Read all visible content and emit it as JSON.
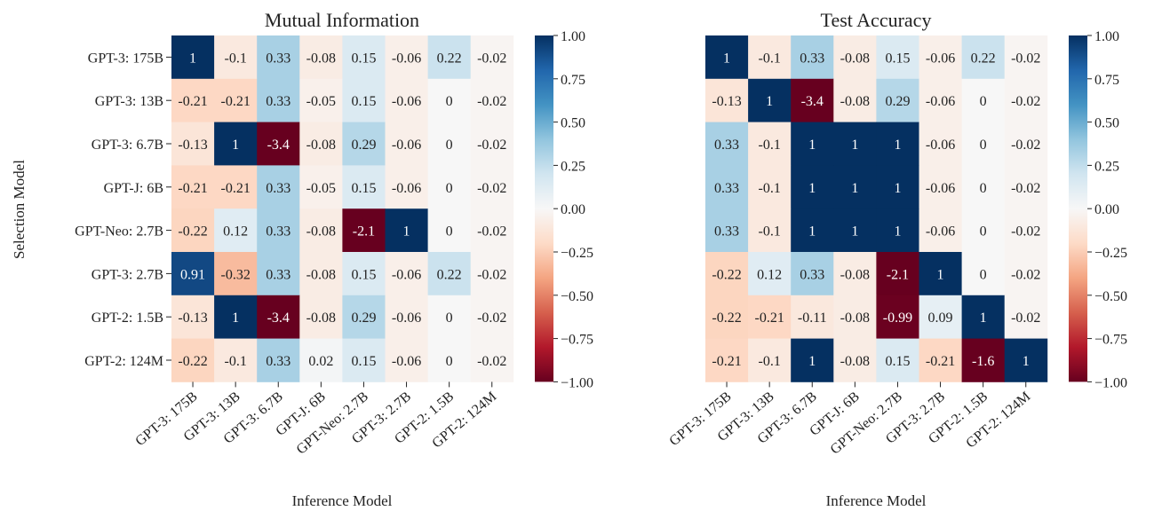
{
  "chart_data": [
    {
      "type": "heatmap",
      "title": "Mutual Information",
      "xlabel": "Inference Model",
      "ylabel": "Selection Model",
      "x_categories": [
        "GPT-3: 175B",
        "GPT-3: 13B",
        "GPT-3: 6.7B",
        "GPT-J: 6B",
        "GPT-Neo: 2.7B",
        "GPT-3: 2.7B",
        "GPT-2: 1.5B",
        "GPT-2: 124M"
      ],
      "y_categories": [
        "GPT-3: 175B",
        "GPT-3: 13B",
        "GPT-3: 6.7B",
        "GPT-J: 6B",
        "GPT-Neo: 2.7B",
        "GPT-3: 2.7B",
        "GPT-2: 1.5B",
        "GPT-2: 124M"
      ],
      "values": [
        [
          1,
          -0.1,
          0.33,
          -0.08,
          0.15,
          -0.06,
          0.22,
          -0.02
        ],
        [
          -0.21,
          -0.21,
          0.33,
          -0.05,
          0.15,
          -0.06,
          0,
          -0.02
        ],
        [
          -0.13,
          1,
          -3.4,
          -0.08,
          0.29,
          -0.06,
          0,
          -0.02
        ],
        [
          -0.21,
          -0.21,
          0.33,
          -0.05,
          0.15,
          -0.06,
          0,
          -0.02
        ],
        [
          -0.22,
          0.12,
          0.33,
          -0.08,
          -2.1,
          1,
          0,
          -0.02
        ],
        [
          0.91,
          -0.32,
          0.33,
          -0.08,
          0.15,
          -0.06,
          0.22,
          -0.02
        ],
        [
          -0.13,
          1,
          -3.4,
          -0.08,
          0.29,
          -0.06,
          0,
          -0.02
        ],
        [
          -0.22,
          -0.1,
          0.33,
          0.02,
          0.15,
          -0.06,
          0,
          -0.02
        ]
      ],
      "labels": [
        [
          "1",
          "-0.1",
          "0.33",
          "-0.08",
          "0.15",
          "-0.06",
          "0.22",
          "-0.02"
        ],
        [
          "-0.21",
          "-0.21",
          "0.33",
          "-0.05",
          "0.15",
          "-0.06",
          "0",
          "-0.02"
        ],
        [
          "-0.13",
          "1",
          "-3.4",
          "-0.08",
          "0.29",
          "-0.06",
          "0",
          "-0.02"
        ],
        [
          "-0.21",
          "-0.21",
          "0.33",
          "-0.05",
          "0.15",
          "-0.06",
          "0",
          "-0.02"
        ],
        [
          "-0.22",
          "0.12",
          "0.33",
          "-0.08",
          "-2.1",
          "1",
          "0",
          "-0.02"
        ],
        [
          "0.91",
          "-0.32",
          "0.33",
          "-0.08",
          "0.15",
          "-0.06",
          "0.22",
          "-0.02"
        ],
        [
          "-0.13",
          "1",
          "-3.4",
          "-0.08",
          "0.29",
          "-0.06",
          "0",
          "-0.02"
        ],
        [
          "-0.22",
          "-0.1",
          "0.33",
          "0.02",
          "0.15",
          "-0.06",
          "0",
          "-0.02"
        ]
      ],
      "colorbar": {
        "range": [
          -1,
          1
        ],
        "ticks": [
          1,
          0.75,
          0.5,
          0.25,
          0,
          -0.25,
          -0.5,
          -0.75,
          -1
        ],
        "tick_labels": [
          "1.00",
          "0.75",
          "0.50",
          "0.25",
          "0.00",
          "−0.25",
          "−0.50",
          "−0.75",
          "−1.00"
        ],
        "colormap": "RdBu"
      },
      "show_y_ticks": true
    },
    {
      "type": "heatmap",
      "title": "Test Accuracy",
      "xlabel": "Inference Model",
      "ylabel": "",
      "x_categories": [
        "GPT-3: 175B",
        "GPT-3: 13B",
        "GPT-3: 6.7B",
        "GPT-J: 6B",
        "GPT-Neo: 2.7B",
        "GPT-3: 2.7B",
        "GPT-2: 1.5B",
        "GPT-2: 124M"
      ],
      "y_categories": [
        "GPT-3: 175B",
        "GPT-3: 13B",
        "GPT-3: 6.7B",
        "GPT-J: 6B",
        "GPT-Neo: 2.7B",
        "GPT-3: 2.7B",
        "GPT-2: 1.5B",
        "GPT-2: 124M"
      ],
      "values": [
        [
          1,
          -0.1,
          0.33,
          -0.08,
          0.15,
          -0.06,
          0.22,
          -0.02
        ],
        [
          -0.13,
          1,
          -3.4,
          -0.08,
          0.29,
          -0.06,
          0,
          -0.02
        ],
        [
          0.33,
          -0.1,
          1,
          1,
          1,
          -0.06,
          0,
          -0.02
        ],
        [
          0.33,
          -0.1,
          1,
          1,
          1,
          -0.06,
          0,
          -0.02
        ],
        [
          0.33,
          -0.1,
          1,
          1,
          1,
          -0.06,
          0,
          -0.02
        ],
        [
          -0.22,
          0.12,
          0.33,
          -0.08,
          -2.1,
          1,
          0,
          -0.02
        ],
        [
          -0.22,
          -0.21,
          -0.11,
          -0.08,
          -0.99,
          0.09,
          1,
          -0.02
        ],
        [
          -0.21,
          -0.1,
          1,
          -0.08,
          0.15,
          -0.21,
          -1.6,
          1
        ]
      ],
      "labels": [
        [
          "1",
          "-0.1",
          "0.33",
          "-0.08",
          "0.15",
          "-0.06",
          "0.22",
          "-0.02"
        ],
        [
          "-0.13",
          "1",
          "-3.4",
          "-0.08",
          "0.29",
          "-0.06",
          "0",
          "-0.02"
        ],
        [
          "0.33",
          "-0.1",
          "1",
          "1",
          "1",
          "-0.06",
          "0",
          "-0.02"
        ],
        [
          "0.33",
          "-0.1",
          "1",
          "1",
          "1",
          "-0.06",
          "0",
          "-0.02"
        ],
        [
          "0.33",
          "-0.1",
          "1",
          "1",
          "1",
          "-0.06",
          "0",
          "-0.02"
        ],
        [
          "-0.22",
          "0.12",
          "0.33",
          "-0.08",
          "-2.1",
          "1",
          "0",
          "-0.02"
        ],
        [
          "-0.22",
          "-0.21",
          "-0.11",
          "-0.08",
          "-0.99",
          "0.09",
          "1",
          "-0.02"
        ],
        [
          "-0.21",
          "-0.1",
          "1",
          "-0.08",
          "0.15",
          "-0.21",
          "-1.6",
          "1"
        ]
      ],
      "colorbar": {
        "range": [
          -1,
          1
        ],
        "ticks": [
          1,
          0.75,
          0.5,
          0.25,
          0,
          -0.25,
          -0.5,
          -0.75,
          -1
        ],
        "tick_labels": [
          "1.00",
          "0.75",
          "0.50",
          "0.25",
          "0.00",
          "−0.25",
          "−0.50",
          "−0.75",
          "−1.00"
        ],
        "colormap": "RdBu"
      },
      "show_y_ticks": false
    }
  ]
}
